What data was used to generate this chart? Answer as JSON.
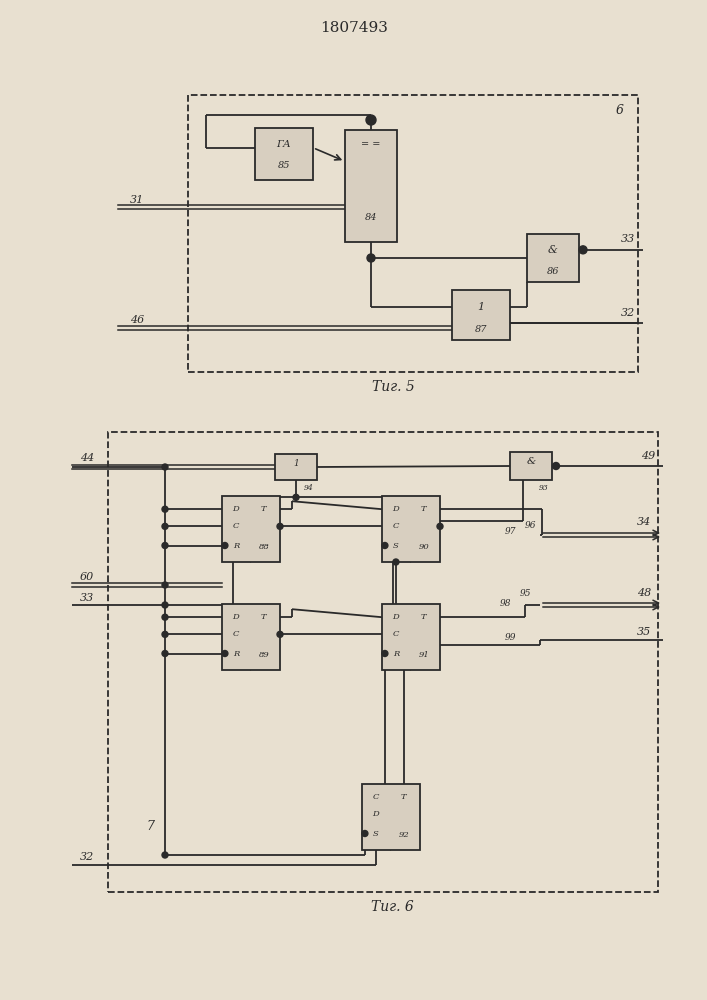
{
  "title": "1807493",
  "fig5_caption": "Τиг. 5",
  "fig6_caption": "Τиг. 6",
  "bg_color": "#e8e0d0",
  "line_color": "#2a2a2a",
  "box_fill": "#d8cfc0",
  "title_fontsize": 11,
  "caption_fontsize": 10
}
